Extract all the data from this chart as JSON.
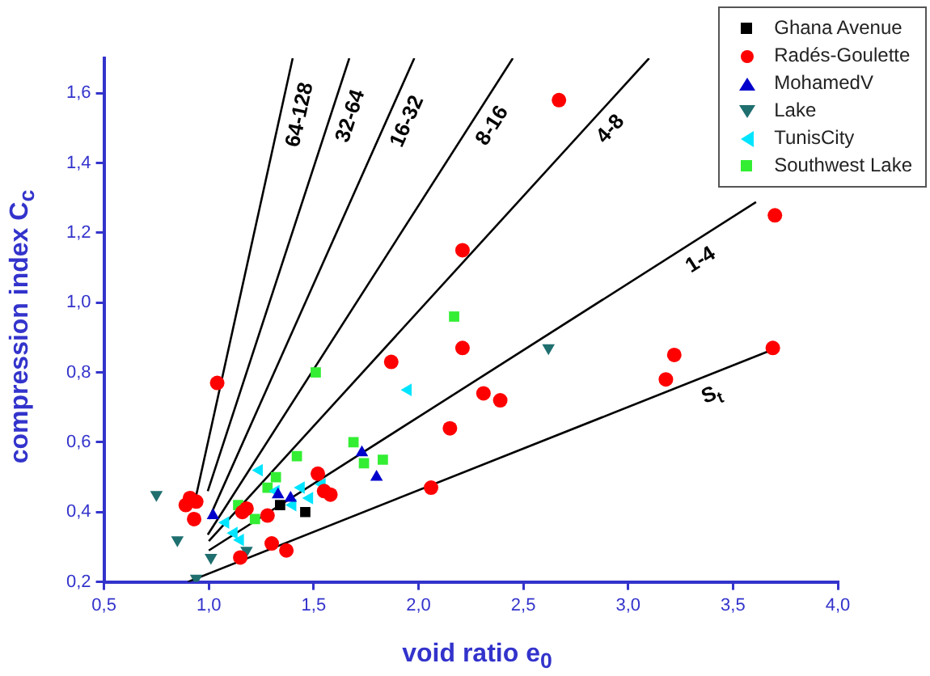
{
  "chart_data": {
    "type": "scatter",
    "xlabel": "void ratio e$_{0}$",
    "ylabel": "compression index C$_{c}$",
    "xlim": [
      0.5,
      4.0
    ],
    "ylim": [
      0.2,
      1.7
    ],
    "xticks": [
      {
        "value": 0.5,
        "label": "0,5"
      },
      {
        "value": 1.0,
        "label": "1,0"
      },
      {
        "value": 1.5,
        "label": "1,5"
      },
      {
        "value": 2.0,
        "label": "2,0"
      },
      {
        "value": 2.5,
        "label": "2,5"
      },
      {
        "value": 3.0,
        "label": "3,0"
      },
      {
        "value": 3.5,
        "label": "3,5"
      },
      {
        "value": 4.0,
        "label": "4,0"
      }
    ],
    "yticks": [
      {
        "value": 0.2,
        "label": "0,2"
      },
      {
        "value": 0.4,
        "label": "0,4"
      },
      {
        "value": 0.6,
        "label": "0,6"
      },
      {
        "value": 0.8,
        "label": "0,8"
      },
      {
        "value": 1.0,
        "label": "1,0"
      },
      {
        "value": 1.2,
        "label": "1,2"
      },
      {
        "value": 1.4,
        "label": "1,4"
      },
      {
        "value": 1.6,
        "label": "1,6"
      }
    ],
    "grid": false,
    "legend": "top right",
    "series": [
      {
        "name": "Ghana Avenue",
        "color": "#000000",
        "marker": "square",
        "x": [
          1.34,
          1.46
        ],
        "values": [
          0.42,
          0.4
        ]
      },
      {
        "name": "Radés-Goulette",
        "color": "#ff0000",
        "marker": "circle",
        "x": [
          1.04,
          0.91,
          0.89,
          0.94,
          0.93,
          1.15,
          1.18,
          1.16,
          1.28,
          1.3,
          1.37,
          1.52,
          1.58,
          1.55,
          1.87,
          2.21,
          2.06,
          2.15,
          2.31,
          2.39,
          3.18,
          3.22,
          3.69,
          2.67,
          3.7,
          2.21
        ],
        "values": [
          0.77,
          0.44,
          0.42,
          0.43,
          0.38,
          0.27,
          0.41,
          0.4,
          0.39,
          0.31,
          0.29,
          0.51,
          0.45,
          0.46,
          0.83,
          0.87,
          0.47,
          0.64,
          0.74,
          0.72,
          0.78,
          0.85,
          0.87,
          1.58,
          1.25,
          1.15
        ]
      },
      {
        "name": "MohamedV",
        "color": "#0000cc",
        "marker": "triangle",
        "x": [
          1.02,
          1.33,
          1.39,
          1.73,
          1.8
        ],
        "values": [
          0.39,
          0.45,
          0.44,
          0.57,
          0.5
        ]
      },
      {
        "name": "Lake",
        "color": "#1f6f6f",
        "marker": "triangle-down",
        "x": [
          0.75,
          0.85,
          1.01,
          0.94,
          1.18,
          2.62
        ],
        "values": [
          0.45,
          0.32,
          0.27,
          0.21,
          0.29,
          0.87
        ]
      },
      {
        "name": "TunisCity",
        "color": "#00e5ff",
        "marker": "triangle-left",
        "x": [
          1.24,
          1.32,
          1.08,
          1.12,
          1.15,
          1.44,
          1.48,
          1.54,
          1.4,
          1.95
        ],
        "values": [
          0.52,
          0.46,
          0.37,
          0.34,
          0.32,
          0.47,
          0.44,
          0.48,
          0.42,
          0.75
        ]
      },
      {
        "name": "Southwest Lake",
        "color": "#33ee33",
        "marker": "square",
        "x": [
          1.51,
          1.42,
          1.32,
          1.28,
          1.14,
          1.22,
          1.69,
          1.74,
          1.83,
          2.17
        ],
        "values": [
          0.8,
          0.56,
          0.5,
          0.47,
          0.42,
          0.38,
          0.6,
          0.54,
          0.55,
          0.96
        ]
      },
      {
        "name": "64-128",
        "type": "line",
        "color": "#000000",
        "marker": "none",
        "x": [
          0.94,
          1.4
        ],
        "values": [
          0.448,
          1.7
        ]
      },
      {
        "name": "32-64",
        "type": "line",
        "color": "#000000",
        "marker": "none",
        "x": [
          0.995,
          1.67
        ],
        "values": [
          0.46,
          1.7
        ]
      },
      {
        "name": "16-32",
        "type": "line",
        "color": "#000000",
        "marker": "none",
        "x": [
          1.0,
          1.98
        ],
        "values": [
          0.38,
          1.7
        ]
      },
      {
        "name": "8-16",
        "type": "line",
        "color": "#000000",
        "marker": "none",
        "x": [
          0.995,
          2.45
        ],
        "values": [
          0.335,
          1.7
        ]
      },
      {
        "name": "4-8",
        "type": "line",
        "color": "#000000",
        "marker": "none",
        "x": [
          1.0,
          3.1
        ],
        "values": [
          0.317,
          1.7
        ]
      },
      {
        "name": "1-4",
        "type": "line",
        "color": "#000000",
        "marker": "none",
        "x": [
          1.0,
          3.61
        ],
        "values": [
          0.29,
          1.288
        ]
      },
      {
        "name": "S$_{t}$",
        "type": "line",
        "color": "#000000",
        "marker": "none",
        "x": [
          0.9,
          3.7
        ],
        "values": [
          0.2,
          0.868
        ]
      }
    ]
  }
}
